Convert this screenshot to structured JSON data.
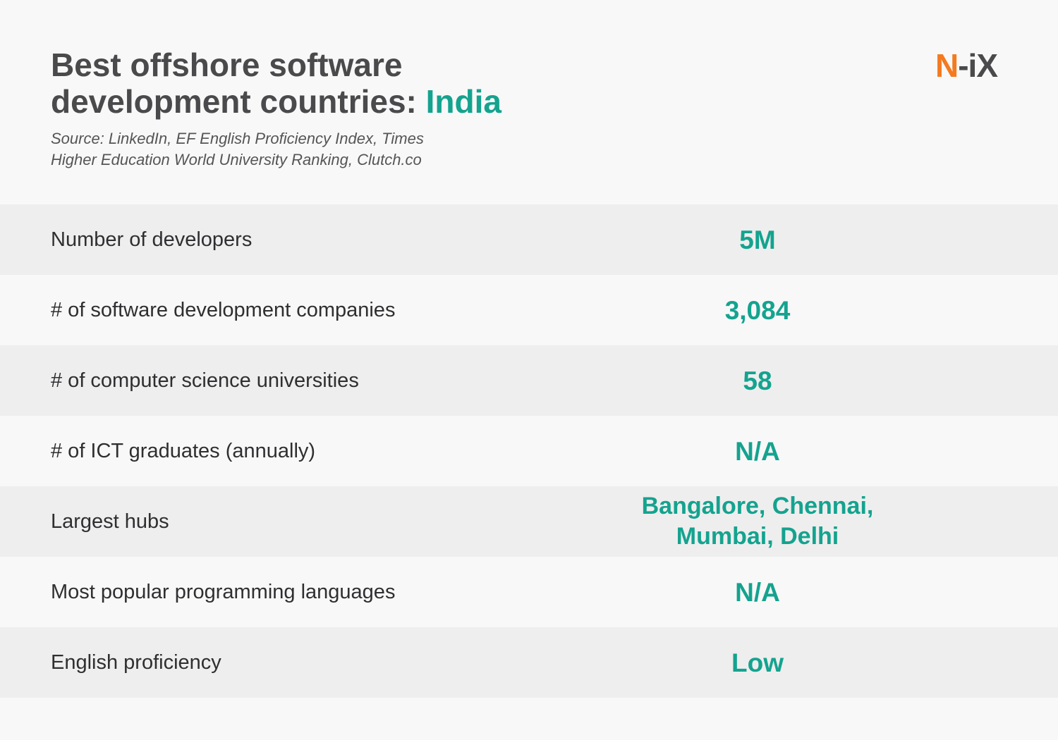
{
  "header": {
    "title_prefix": "Best offshore software development countries: ",
    "title_country": "India",
    "source": "Source: LinkedIn, EF English Proficiency Index, Times Higher Education World University Ranking, Clutch.co"
  },
  "logo": {
    "part1": "N",
    "part2": "-iX",
    "colors": {
      "n": "#f47a1f",
      "rest": "#4a4a4c"
    }
  },
  "accent_color": "#14a38f",
  "rows": [
    {
      "label": "Number of developers",
      "value": "5M"
    },
    {
      "label": "# of software development companies",
      "value": "3,084"
    },
    {
      "label": "# of computer science universities",
      "value": "58"
    },
    {
      "label": "# of ICT graduates (annually)",
      "value": "N/A"
    },
    {
      "label": "Largest hubs",
      "value": "Bangalore, Chennai, Mumbai, Delhi"
    },
    {
      "label": "Most popular programming languages",
      "value": "N/A"
    },
    {
      "label": "English proficiency",
      "value": "Low"
    }
  ]
}
